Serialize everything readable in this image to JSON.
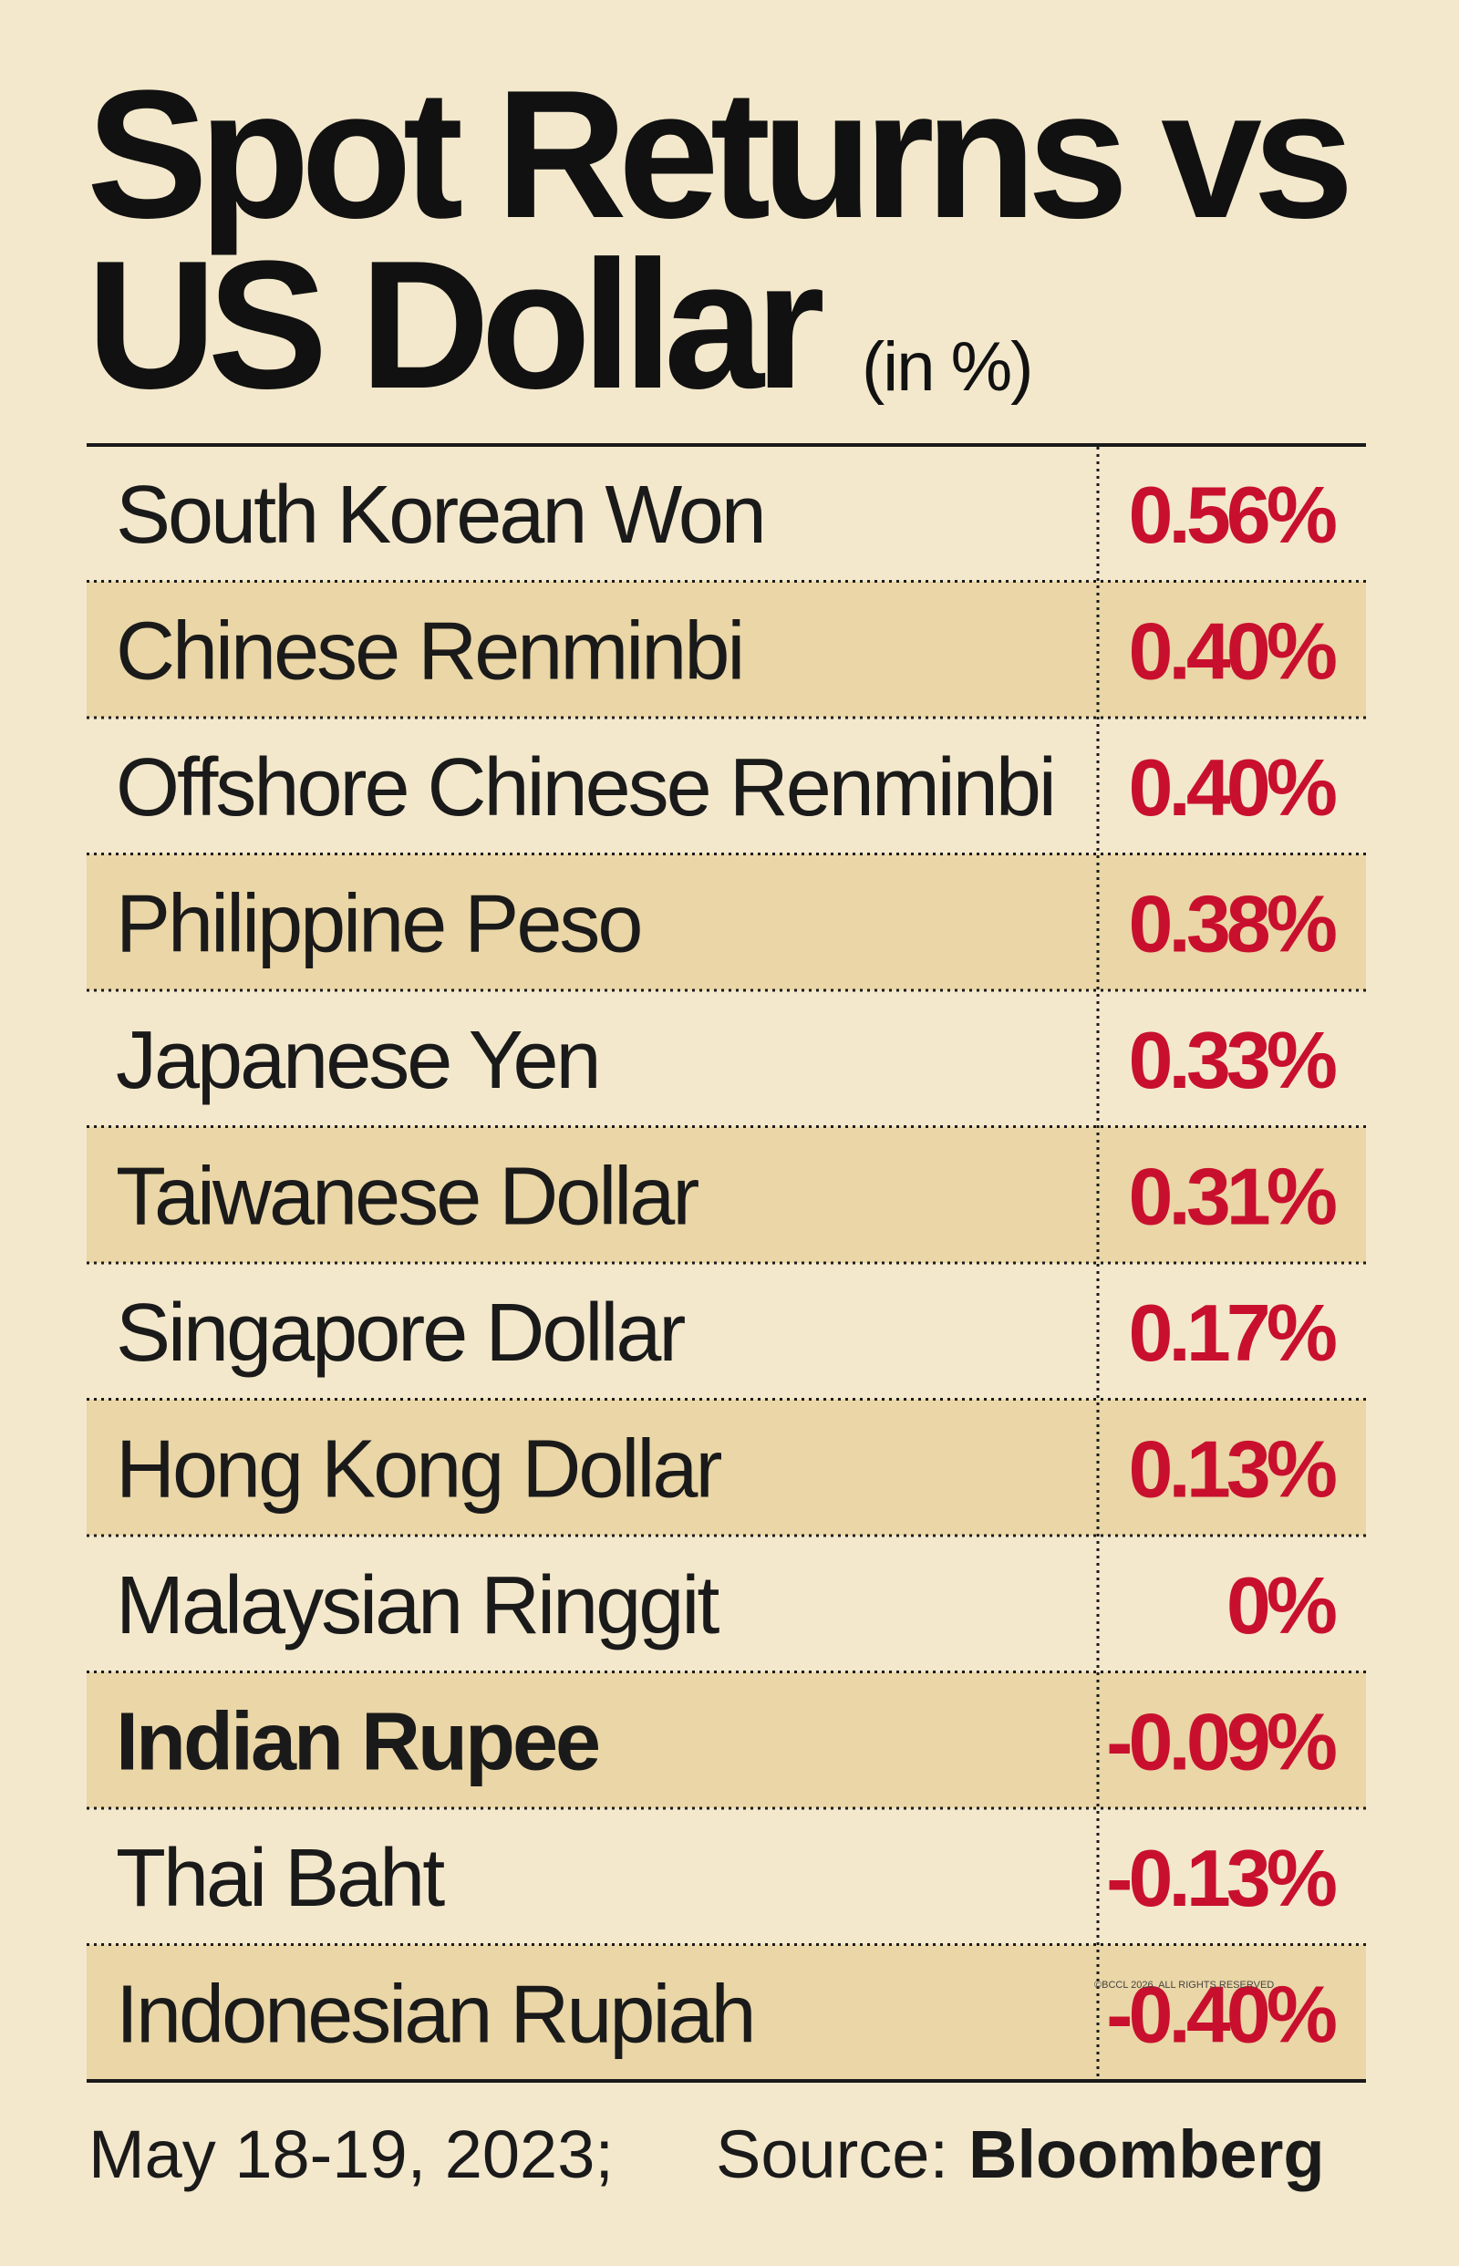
{
  "header": {
    "title_lines": [
      "Spot Returns vs",
      "US Dollar"
    ],
    "unit": "(in %)"
  },
  "table": {
    "rows": [
      {
        "currency": "South Korean Won",
        "return": "0.56%"
      },
      {
        "currency": "Chinese Renminbi",
        "return": "0.40%"
      },
      {
        "currency": "Offshore Chinese Renminbi",
        "return": "0.40%"
      },
      {
        "currency": "Philippine Peso",
        "return": "0.38%"
      },
      {
        "currency": "Japanese Yen",
        "return": "0.33%"
      },
      {
        "currency": "Taiwanese Dollar",
        "return": "0.31%"
      },
      {
        "currency": "Singapore Dollar",
        "return": "0.17%"
      },
      {
        "currency": "Hong Kong Dollar",
        "return": "0.13%"
      },
      {
        "currency": "Malaysian Ringgit",
        "return": "0%"
      },
      {
        "currency": "Indian Rupee",
        "return": "-0.09%",
        "emphasis": true
      },
      {
        "currency": "Thai Baht",
        "return": "-0.13%"
      },
      {
        "currency": "Indonesian Rupiah",
        "return": "-0.40%"
      }
    ]
  },
  "footer": {
    "date": "May 18-19, 2023;",
    "source_label": "Source:",
    "source": "Bloomberg"
  },
  "watermark": "©BCCL 2026. ALL RIGHTS RESERVED"
}
